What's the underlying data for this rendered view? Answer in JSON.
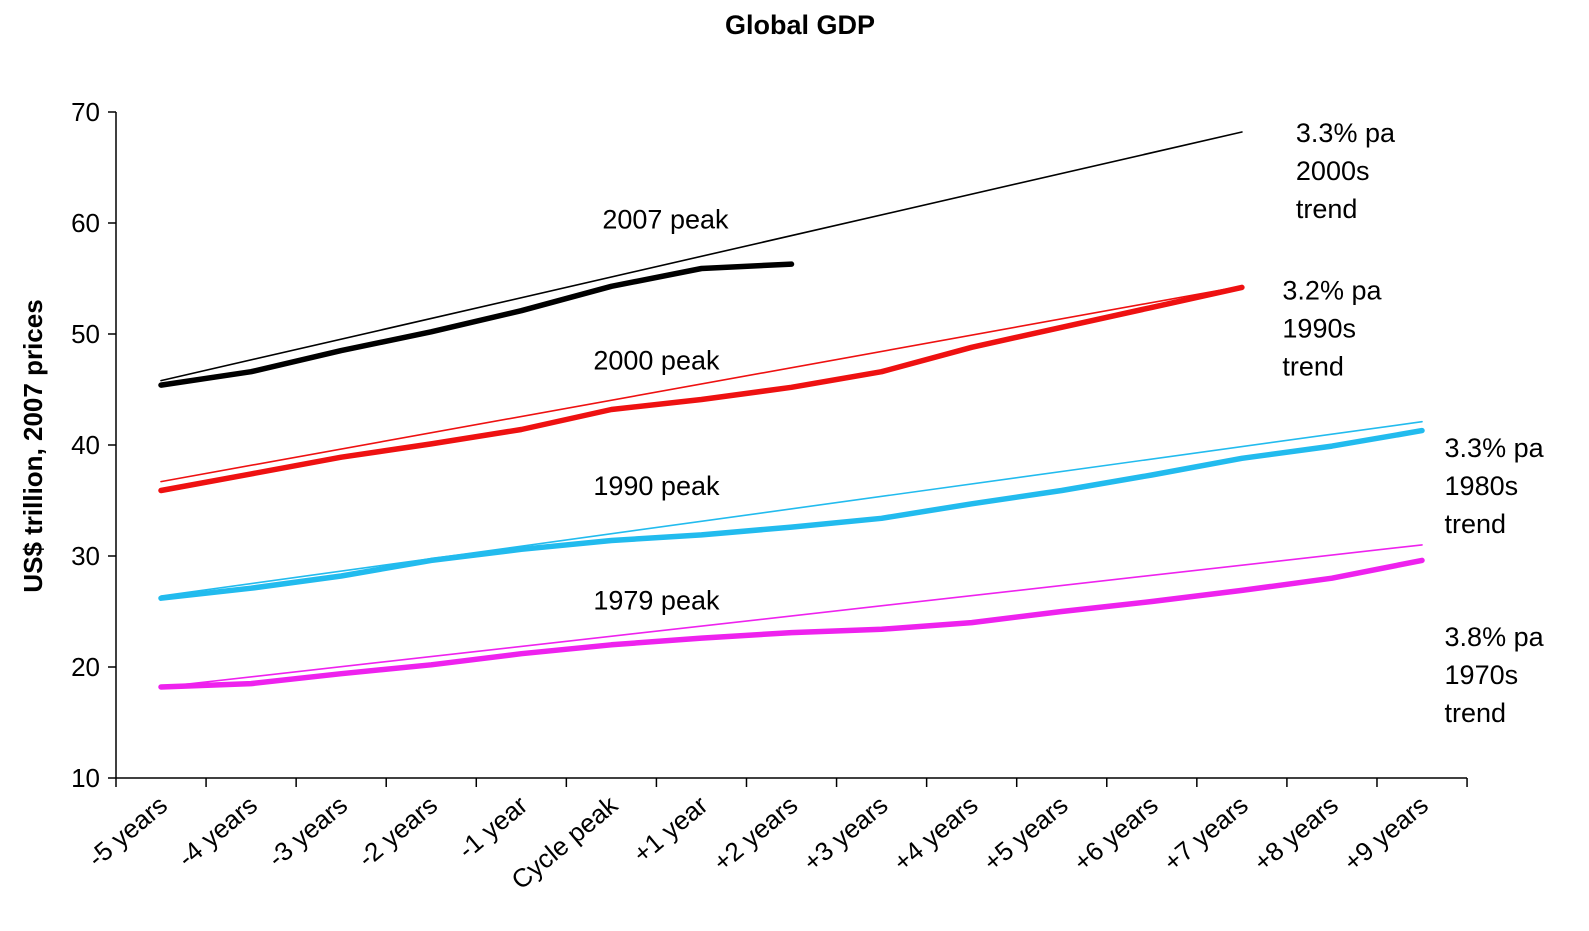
{
  "chart_data": {
    "type": "line",
    "title": "Global GDP",
    "ylabel": "US$ trillion, 2007 prices",
    "xlabel": "",
    "ylim": [
      10,
      70
    ],
    "yticks": [
      10,
      20,
      30,
      40,
      50,
      60,
      70
    ],
    "grid": false,
    "legend": "none",
    "categories": [
      "-5 years",
      "-4 years",
      "-3 years",
      "-2 years",
      "-1 year",
      "Cycle peak",
      "+1 year",
      "+2 years",
      "+3 years",
      "+4 years",
      "+5 years",
      "+6 years",
      "+7 years",
      "+8 years",
      "+9 years"
    ],
    "series": [
      {
        "color": "#000000",
        "kind": "actual",
        "x": [
          0,
          1,
          2,
          3,
          4,
          5,
          6,
          7
        ],
        "values": [
          45.4,
          46.6,
          48.5,
          50.2,
          52.1,
          54.3,
          55.9,
          56.3
        ]
      },
      {
        "color": "#000000",
        "kind": "trend",
        "x": [
          0,
          12
        ],
        "values": [
          45.8,
          68.2
        ]
      },
      {
        "color": "#ee1111",
        "kind": "actual",
        "x": [
          0,
          1,
          2,
          3,
          4,
          5,
          6,
          7,
          8,
          9,
          10,
          11,
          12
        ],
        "values": [
          35.9,
          37.4,
          38.9,
          40.1,
          41.4,
          43.2,
          44.1,
          45.2,
          46.6,
          48.8,
          50.6,
          52.4,
          54.2
        ]
      },
      {
        "color": "#ee1111",
        "kind": "trend",
        "x": [
          0,
          12
        ],
        "values": [
          36.7,
          54.3
        ]
      },
      {
        "color": "#22bbee",
        "kind": "actual",
        "x": [
          0,
          1,
          2,
          3,
          4,
          5,
          6,
          7,
          8,
          9,
          10,
          11,
          12,
          13,
          14
        ],
        "values": [
          26.2,
          27.1,
          28.2,
          29.6,
          30.6,
          31.4,
          31.9,
          32.6,
          33.4,
          34.7,
          35.9,
          37.3,
          38.8,
          39.9,
          41.3
        ]
      },
      {
        "color": "#22bbee",
        "kind": "trend",
        "x": [
          0,
          14
        ],
        "values": [
          26.4,
          42.1
        ]
      },
      {
        "color": "#ee22ee",
        "kind": "actual",
        "x": [
          0,
          1,
          2,
          3,
          4,
          5,
          6,
          7,
          8,
          9,
          10,
          11,
          12,
          13,
          14
        ],
        "values": [
          18.2,
          18.5,
          19.4,
          20.2,
          21.2,
          22.0,
          22.6,
          23.1,
          23.4,
          24.0,
          25.0,
          25.9,
          26.9,
          28.0,
          29.6
        ]
      },
      {
        "color": "#ee22ee",
        "kind": "trend",
        "x": [
          0,
          14
        ],
        "values": [
          18.2,
          31.0
        ]
      }
    ],
    "annotations": [
      {
        "text": "2007 peak",
        "x": 4.9,
        "y": 59.5,
        "lines": [
          "2007 peak"
        ]
      },
      {
        "text": "2000 peak",
        "x": 4.8,
        "y": 46.8,
        "lines": [
          "2000 peak"
        ]
      },
      {
        "text": "1990 peak",
        "x": 4.8,
        "y": 35.5,
        "lines": [
          "1990 peak"
        ]
      },
      {
        "text": "1979 peak",
        "x": 4.8,
        "y": 25.2,
        "lines": [
          "1979 peak"
        ]
      },
      {
        "text": "3.3% pa 2000s trend",
        "x": 12.6,
        "y": 67.3,
        "lines": [
          "3.3% pa",
          "2000s",
          "trend"
        ]
      },
      {
        "text": "3.2% pa 1990s trend",
        "x": 12.45,
        "y": 53.1,
        "lines": [
          "3.2% pa",
          "1990s",
          "trend"
        ]
      },
      {
        "text": "3.3% pa 1980s trend",
        "x": 14.25,
        "y": 38.9,
        "lines": [
          "3.3% pa",
          "1980s",
          "trend"
        ]
      },
      {
        "text": "3.8% pa 1970s trend",
        "x": 14.25,
        "y": 21.9,
        "lines": [
          "3.8% pa",
          "1970s",
          "trend"
        ]
      }
    ]
  }
}
